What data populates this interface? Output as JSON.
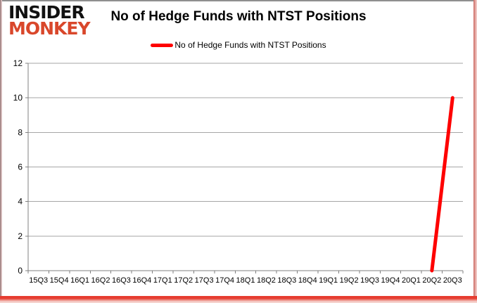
{
  "logo": {
    "line1": "INSIDER",
    "line2": "MONKEY"
  },
  "header": {
    "title": "No of Hedge Funds with NTST Positions"
  },
  "legend": {
    "label": "No of Hedge Funds with NTST Positions"
  },
  "colors": {
    "line": "#fe0000",
    "grid": "#a6a6a6",
    "axis": "#808080",
    "text": "#000000",
    "logo_monkey": "#d9472b",
    "logo_insider": "#111111"
  },
  "chart_data": {
    "type": "line",
    "title": "No of Hedge Funds with NTST Positions",
    "categories": [
      "15Q3",
      "15Q4",
      "16Q1",
      "16Q2",
      "16Q3",
      "16Q4",
      "17Q1",
      "17Q2",
      "17Q3",
      "17Q4",
      "18Q1",
      "18Q2",
      "18Q3",
      "18Q4",
      "19Q1",
      "19Q2",
      "19Q3",
      "19Q4",
      "20Q1",
      "20Q2",
      "20Q3"
    ],
    "series": [
      {
        "name": "No of Hedge Funds with NTST Positions",
        "values": [
          null,
          null,
          null,
          null,
          null,
          null,
          null,
          null,
          null,
          null,
          null,
          null,
          null,
          null,
          null,
          null,
          null,
          null,
          null,
          0,
          10
        ]
      }
    ],
    "xlabel": "",
    "ylabel": "",
    "ylim": [
      0,
      12
    ],
    "ytick_interval": 2,
    "grid": true,
    "legend_position": "top"
  }
}
